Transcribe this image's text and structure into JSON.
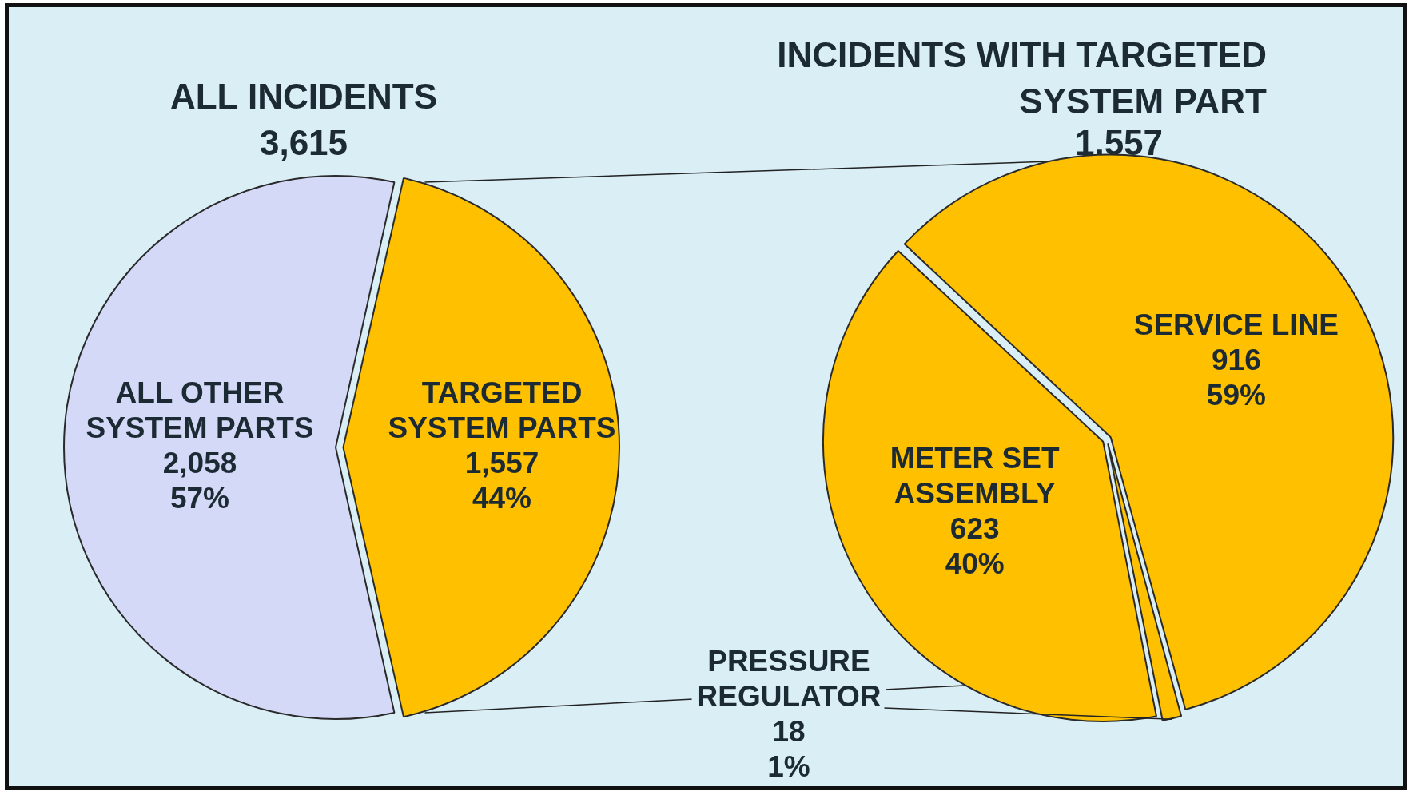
{
  "chart_data": [
    {
      "type": "pie",
      "title": "ALL INCIDENTS",
      "subtitle": "3,615",
      "categories": [
        "ALL OTHER SYSTEM PARTS",
        "TARGETED SYSTEM PARTS"
      ],
      "values": [
        2058,
        1557
      ],
      "colors": [
        "#d3d9f7",
        "#ffc000"
      ],
      "value_labels": [
        "2,058\n57%",
        "1,557\n44%"
      ]
    },
    {
      "type": "pie",
      "title": "INCIDENTS WITH TARGETED SYSTEM PART",
      "subtitle": "1,557",
      "categories": [
        "SERVICE LINE",
        "PRESSURE REGULATOR",
        "METER SET ASSEMBLY"
      ],
      "values": [
        916,
        18,
        623
      ],
      "colors": [
        "#ffc000",
        "#ffc000",
        "#ffc000"
      ],
      "value_labels": [
        "916\n59%",
        "18\n1%",
        "623\n40%"
      ]
    }
  ]
}
